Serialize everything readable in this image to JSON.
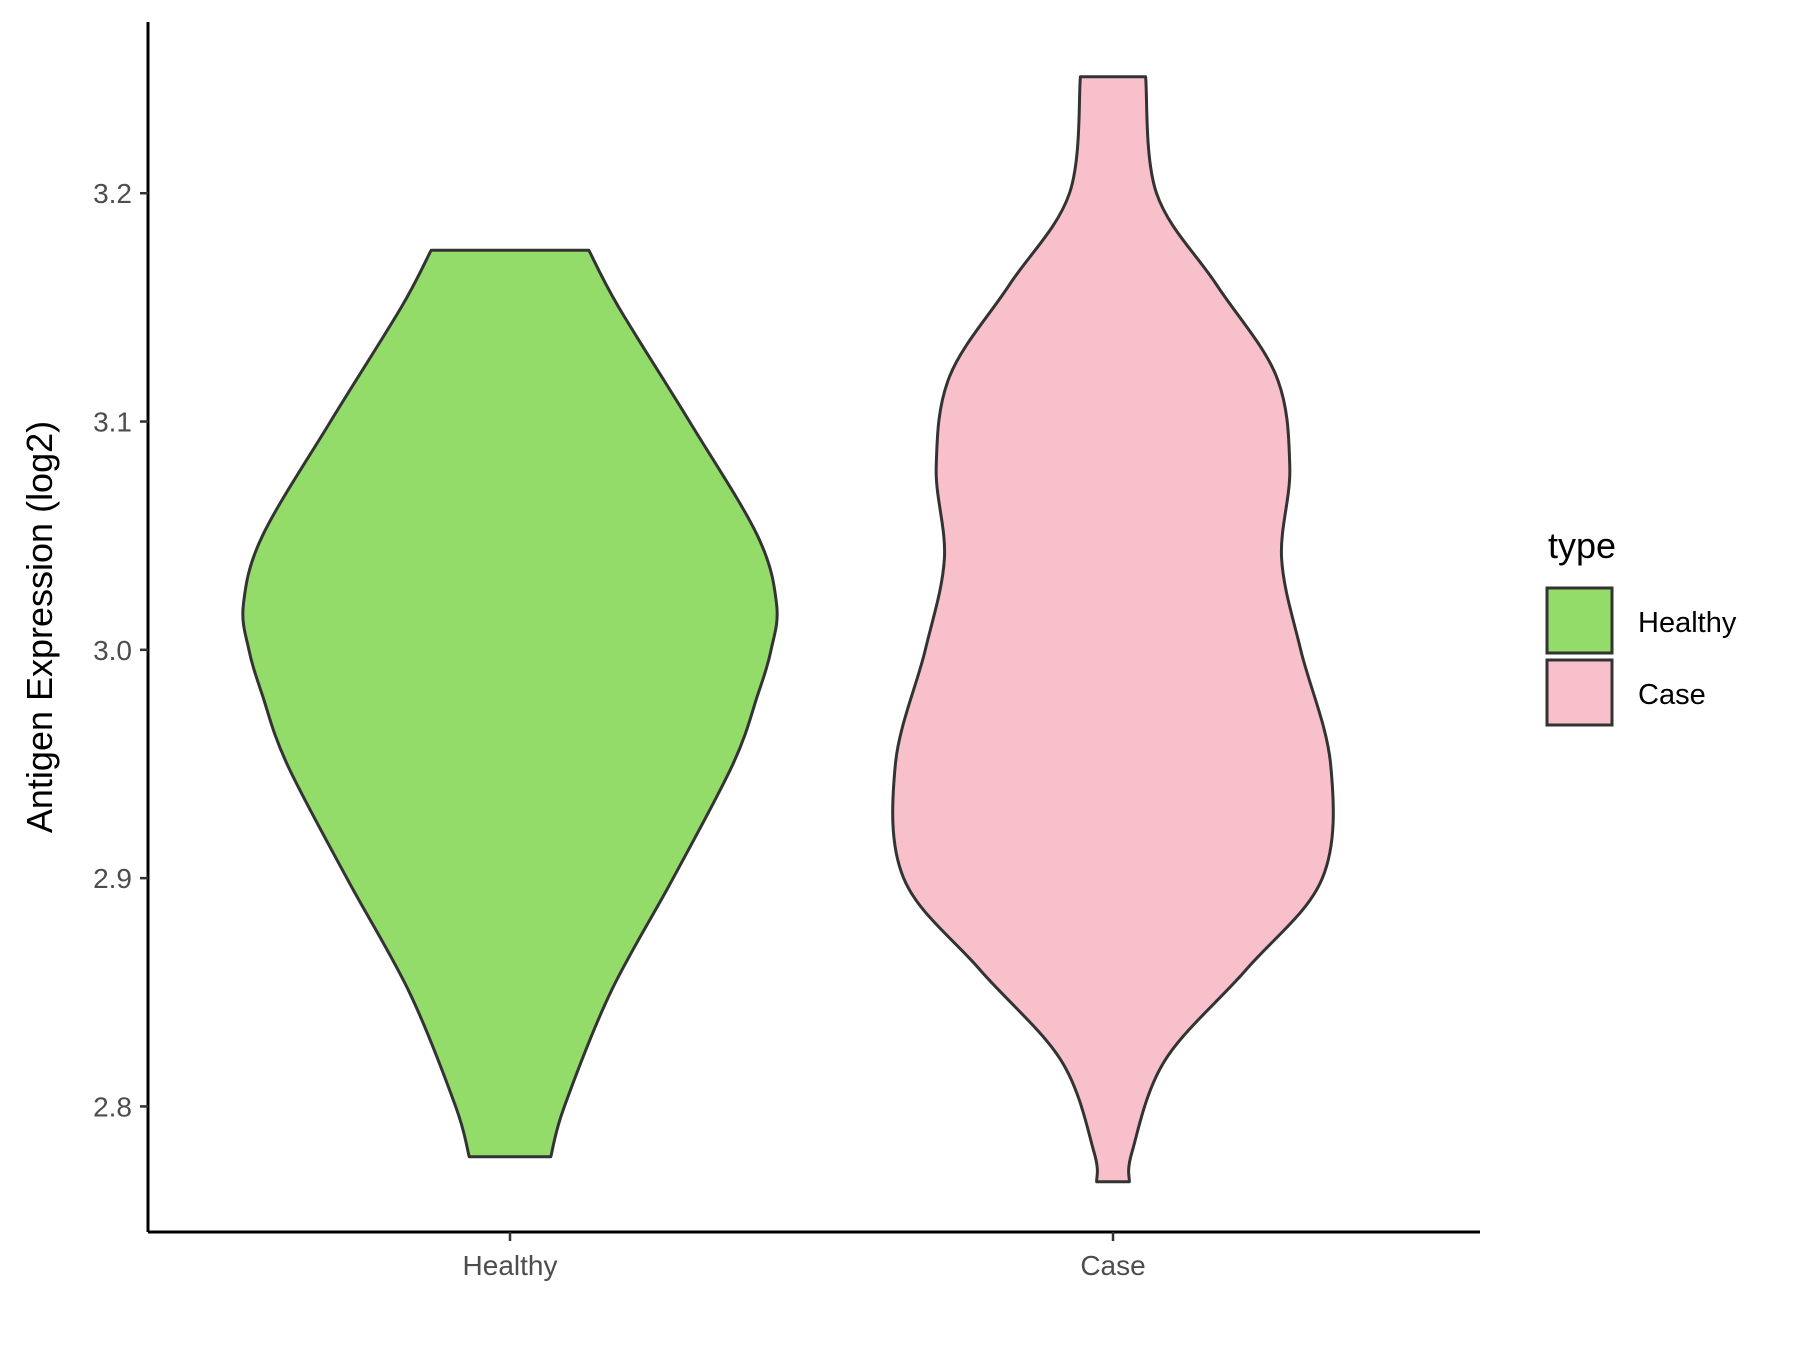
{
  "chart_data": {
    "type": "violin",
    "ylabel": "Antigen Expression (log2)",
    "ylim": [
      2.745,
      3.275
    ],
    "yticks": [
      "2.8",
      "2.9",
      "3.0",
      "3.1",
      "3.2"
    ],
    "categories": [
      "Healthy",
      "Case"
    ],
    "legend": {
      "title": "type",
      "position": "right",
      "entries": [
        "Healthy",
        "Case"
      ]
    },
    "grid": false,
    "colors": {
      "Healthy": "#93dc6a",
      "Case": "#f8c0cb",
      "outline": "#333333"
    },
    "series": [
      {
        "name": "Healthy",
        "profile": [
          [
            2.778,
            0.15
          ],
          [
            2.8,
            0.2
          ],
          [
            2.85,
            0.37
          ],
          [
            2.9,
            0.6
          ],
          [
            2.95,
            0.82
          ],
          [
            2.98,
            0.91
          ],
          [
            3.0,
            0.96
          ],
          [
            3.02,
            0.98
          ],
          [
            3.05,
            0.91
          ],
          [
            3.1,
            0.66
          ],
          [
            3.15,
            0.4
          ],
          [
            3.175,
            0.29
          ]
        ]
      },
      {
        "name": "Case",
        "profile": [
          [
            2.767,
            0.06
          ],
          [
            2.78,
            0.07
          ],
          [
            2.82,
            0.19
          ],
          [
            2.86,
            0.49
          ],
          [
            2.9,
            0.77
          ],
          [
            2.95,
            0.8
          ],
          [
            3.0,
            0.69
          ],
          [
            3.04,
            0.62
          ],
          [
            3.08,
            0.65
          ],
          [
            3.12,
            0.6
          ],
          [
            3.16,
            0.38
          ],
          [
            3.2,
            0.16
          ],
          [
            3.251,
            0.12
          ]
        ]
      }
    ]
  }
}
